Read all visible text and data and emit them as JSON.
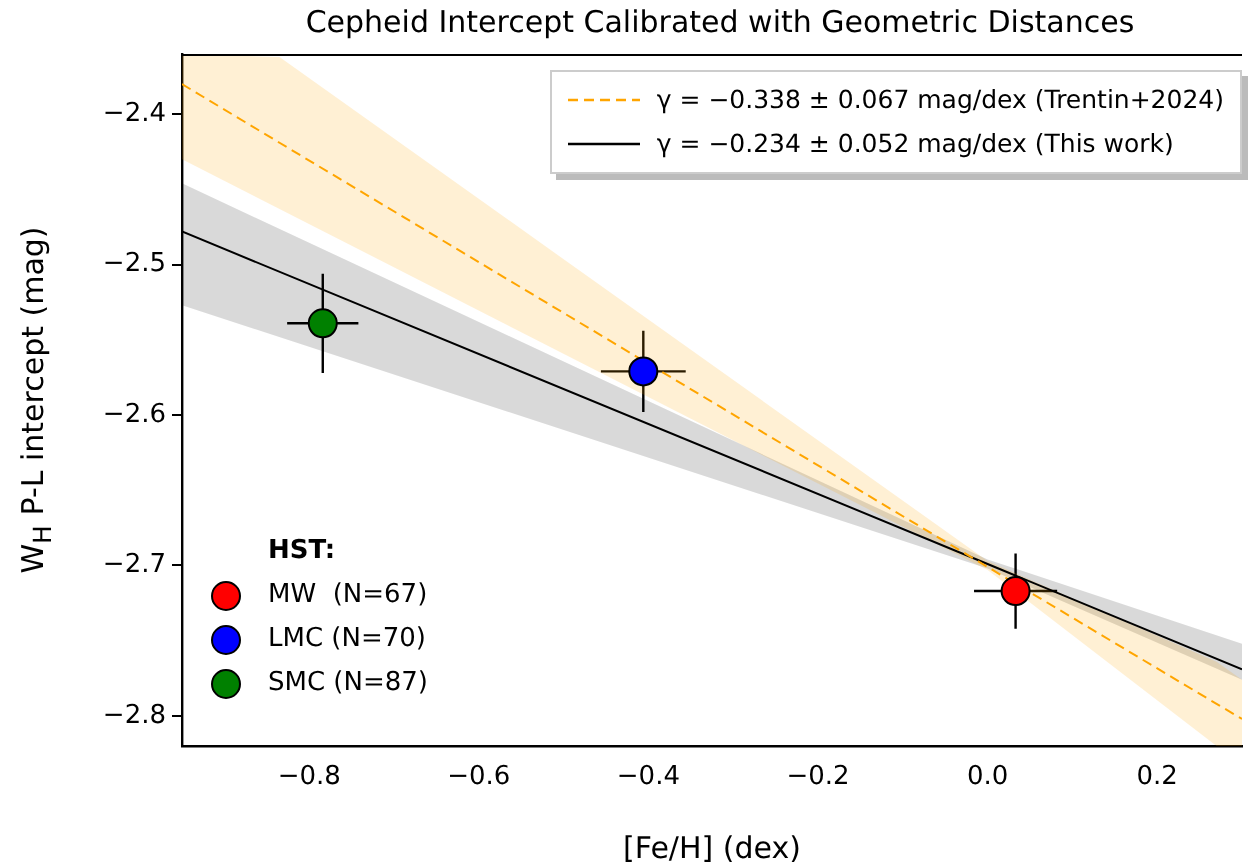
{
  "chart_data": {
    "type": "scatter",
    "title": "Cepheid Intercept Calibrated with Geometric Distances",
    "xlabel": "[Fe/H] (dex)",
    "ylabel": "W$_{H}$ P-L intercept (mag)",
    "legend_title": "HST:",
    "legend": "top right",
    "grid": false,
    "xlim": [
      -0.95,
      0.3
    ],
    "ylim": [
      -2.82,
      -2.36
    ],
    "xticks": [
      -0.8,
      -0.6,
      -0.4,
      -0.2,
      {
        "value": 0,
        "label": "0.0"
      },
      0.2
    ],
    "yticks": [
      -2.4,
      -2.5,
      -2.6,
      -2.7,
      -2.8
    ],
    "series": [
      {
        "type": "line",
        "name": "γ = −0.338 ± 0.067 mag/dex (Trentin+2024)",
        "color": "#ffa500",
        "line_style": "dashed",
        "marker": "none",
        "x": [
          -0.95,
          -0.835,
          0,
          0.27,
          0.3
        ],
        "values": [
          -2.38,
          -2.419,
          -2.701,
          -2.792,
          -2.802
        ],
        "upper": [
          -2.36,
          -2.362,
          -2.697,
          -2.764,
          -2.776
        ],
        "lower": [
          -2.43,
          -2.463,
          -2.703,
          -2.82,
          -2.82
        ]
      },
      {
        "type": "line",
        "name": "γ = −0.234 ± 0.052 mag/dex (This work)",
        "color": "#000000",
        "line_style": "solid",
        "marker": "none",
        "x": [
          -0.95,
          0,
          0.3
        ],
        "values": [
          -2.478,
          -2.699,
          -2.769
        ],
        "upper": [
          -2.446,
          -2.696,
          -2.752
        ],
        "lower": [
          -2.527,
          -2.702,
          -2.776
        ]
      },
      {
        "marker": "circle",
        "name": "MW  (N=67)",
        "color": "#ff0000",
        "x": [
          0.033
        ],
        "values": [
          -2.717
        ],
        "errors": [
          0.025
        ],
        "xerrors": [
          0.049
        ]
      },
      {
        "marker": "circle",
        "name": "LMC (N=70)",
        "color": "#0000ff",
        "x": [
          -0.406
        ],
        "values": [
          -2.571
        ],
        "errors": [
          0.027
        ],
        "xerrors": [
          0.05
        ]
      },
      {
        "marker": "circle",
        "name": "SMC (N=87)",
        "color": "#008000",
        "x": [
          -0.784
        ],
        "values": [
          -2.539
        ],
        "errors": [
          0.033
        ],
        "xerrors": [
          0.042
        ]
      }
    ]
  }
}
